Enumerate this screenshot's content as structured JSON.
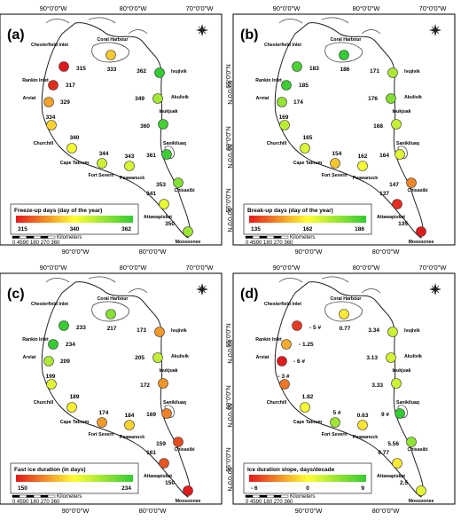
{
  "colors": {
    "grad_low": "#e31a1c",
    "grad_mid": "#ffff33",
    "grad_high": "#33cc33",
    "frame": "#000000",
    "background": "#ffffff"
  },
  "north_arrow_icon": "compass-rose-icon",
  "common": {
    "lon_labels": [
      "90°0'0\"W",
      "80°0'0\"W",
      "70°0'0\"W"
    ],
    "lon_labels_bottom": [
      "90°0'0\"W",
      "80°0'0\"W"
    ],
    "lat_labels_left": [
      "65°0'0\"N",
      "60°0'0\"N",
      "55°0'0\"N"
    ],
    "lat_labels_right": [
      "60°0'0\"N",
      "55°0'0\"N",
      "50°0'0\"N"
    ],
    "scale_ticks": "0 4590 180 270 360",
    "scale_unit": "Kilometers"
  },
  "panels": [
    {
      "id": "a",
      "letter": "(a)",
      "legend_title": "Freeze-up days (day of the year)",
      "legend_min": "315",
      "legend_mid": "340",
      "legend_max": "362",
      "range": [
        315,
        362
      ],
      "stations": [
        {
          "name": "Coral Harbour",
          "value_text": "333",
          "value": 333
        },
        {
          "name": "Chesterfield Inlet",
          "value_text": "315",
          "value": 315
        },
        {
          "name": "Rankin Inlet",
          "value_text": "317",
          "value": 317
        },
        {
          "name": "Arviat",
          "value_text": "329",
          "value": 329
        },
        {
          "name": "Churchill",
          "value_text": "334",
          "value": 334
        },
        {
          "name": "Cape Tatnum",
          "value_text": "340",
          "value": 340
        },
        {
          "name": "Fort Severn",
          "value_text": "344",
          "value": 344
        },
        {
          "name": "Peawanuck",
          "value_text": "343",
          "value": 343
        },
        {
          "name": "Attawapiskat",
          "value_text": "341",
          "value": 341
        },
        {
          "name": "Moosoonee",
          "value_text": "350",
          "value": 350
        },
        {
          "name": "Chisasibi",
          "value_text": "353",
          "value": 353
        },
        {
          "name": "Sanikiluaq",
          "value_text": "361",
          "value": 361
        },
        {
          "name": "Inukjuak",
          "value_text": "360",
          "value": 360
        },
        {
          "name": "Akulivik",
          "value_text": "349",
          "value": 349
        },
        {
          "name": "Ivujivik",
          "value_text": "362",
          "value": 362
        }
      ]
    },
    {
      "id": "b",
      "letter": "(b)",
      "legend_title": "Break-up days (day of the year)",
      "legend_min": "135",
      "legend_mid": "162",
      "legend_max": "186",
      "range": [
        135,
        186
      ],
      "stations": [
        {
          "name": "Coral Harbour",
          "value_text": "186",
          "value": 186
        },
        {
          "name": "Chesterfield Inlet",
          "value_text": "183",
          "value": 183
        },
        {
          "name": "Rankin Inlet",
          "value_text": "185",
          "value": 185
        },
        {
          "name": "Arviat",
          "value_text": "174",
          "value": 174
        },
        {
          "name": "Churchill",
          "value_text": "169",
          "value": 169
        },
        {
          "name": "Cape Tatnum",
          "value_text": "165",
          "value": 165
        },
        {
          "name": "Fort Severn",
          "value_text": "154",
          "value": 154
        },
        {
          "name": "Peawanuck",
          "value_text": "162",
          "value": 162
        },
        {
          "name": "Attawapiskat",
          "value_text": "137",
          "value": 137
        },
        {
          "name": "Moosoonee",
          "value_text": "135",
          "value": 135
        },
        {
          "name": "Chisasibi",
          "value_text": "147",
          "value": 147
        },
        {
          "name": "Sanikiluaq",
          "value_text": "164",
          "value": 164
        },
        {
          "name": "Inukjuak",
          "value_text": "168",
          "value": 168
        },
        {
          "name": "Akulivik",
          "value_text": "176",
          "value": 176
        },
        {
          "name": "Ivujivik",
          "value_text": "171",
          "value": 171
        }
      ]
    },
    {
      "id": "c",
      "letter": "(c)",
      "legend_title": "Fast ice duration (in days)",
      "legend_min": "150",
      "legend_mid": "",
      "legend_max": "234",
      "range": [
        150,
        234
      ],
      "stations": [
        {
          "name": "Coral Harbour",
          "value_text": "217",
          "value": 217
        },
        {
          "name": "Chesterfield Inlet",
          "value_text": "233",
          "value": 233
        },
        {
          "name": "Rankin Inlet",
          "value_text": "234",
          "value": 234
        },
        {
          "name": "Arviat",
          "value_text": "209",
          "value": 209
        },
        {
          "name": "Churchill",
          "value_text": "199",
          "value": 199
        },
        {
          "name": "Cape Tatnum",
          "value_text": "189",
          "value": 189
        },
        {
          "name": "Fort Severn",
          "value_text": "174",
          "value": 174
        },
        {
          "name": "Peawanuck",
          "value_text": "184",
          "value": 184
        },
        {
          "name": "Attawapiskat",
          "value_text": "161",
          "value": 161
        },
        {
          "name": "Moosoonee",
          "value_text": "150",
          "value": 150
        },
        {
          "name": "Chisasibi",
          "value_text": "159",
          "value": 159
        },
        {
          "name": "Sanikiluaq",
          "value_text": "169",
          "value": 169
        },
        {
          "name": "Inukjuak",
          "value_text": "172",
          "value": 172
        },
        {
          "name": "Akulivik",
          "value_text": "205",
          "value": 205
        },
        {
          "name": "Ivujivik",
          "value_text": "173",
          "value": 173
        }
      ]
    },
    {
      "id": "d",
      "letter": "(d)",
      "legend_title": "Ice duration slope, days/decade",
      "legend_min": "- 6",
      "legend_mid": "0",
      "legend_max": "9",
      "range": [
        -6,
        9
      ],
      "stations": [
        {
          "name": "Coral Harbour",
          "value_text": "0.77",
          "value": 0.77
        },
        {
          "name": "Chesterfield Inlet",
          "value_text": "- 5 #",
          "value": -5
        },
        {
          "name": "Rankin Inlet",
          "value_text": "- 1.25",
          "value": -1.25
        },
        {
          "name": "Arviat",
          "value_text": "- 6 #",
          "value": -6
        },
        {
          "name": "Churchill",
          "value_text": "- 3 #",
          "value": -3
        },
        {
          "name": "Cape Tatnum",
          "value_text": "1.82",
          "value": 1.82
        },
        {
          "name": "Fort Severn",
          "value_text": "5 #",
          "value": 5
        },
        {
          "name": "Peawanuck",
          "value_text": "0.63",
          "value": 0.63
        },
        {
          "name": "Attawapiskat",
          "value_text": "0.77",
          "value": 0.77
        },
        {
          "name": "Moosoonee",
          "value_text": "2.5",
          "value": 2.5
        },
        {
          "name": "Chisasibi",
          "value_text": "5.56",
          "value": 5.56
        },
        {
          "name": "Sanikiluaq",
          "value_text": "9 #",
          "value": 9
        },
        {
          "name": "Inukjuak",
          "value_text": "3.33",
          "value": 3.33
        },
        {
          "name": "Akulivik",
          "value_text": "3.13",
          "value": 3.13
        },
        {
          "name": "Ivujivik",
          "value_text": "3.34",
          "value": 3.34
        }
      ]
    }
  ]
}
